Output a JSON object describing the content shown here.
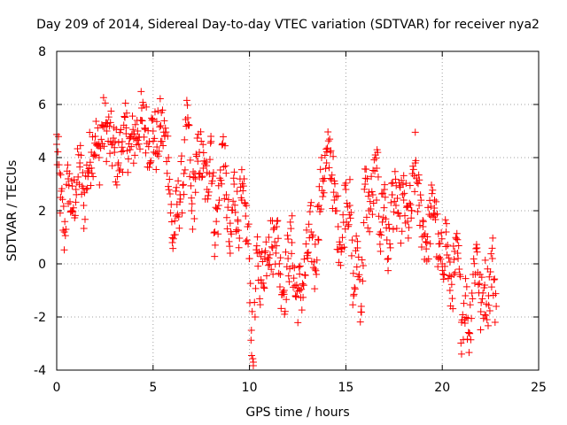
{
  "chart_data": {
    "type": "scatter",
    "title": "Day 209 of 2014, Sidereal Day-to-day VTEC variation (SDTVAR) for receiver nya2",
    "xlabel": "GPS time / hours",
    "ylabel": "SDTVAR / TECUs",
    "xlim": [
      0,
      25
    ],
    "ylim": [
      -4,
      8
    ],
    "x_ticks": [
      0,
      5,
      10,
      15,
      20,
      25
    ],
    "y_ticks": [
      -4,
      -2,
      0,
      2,
      4,
      6,
      8
    ],
    "x_tick_labels": [
      "0",
      "5",
      "10",
      "15",
      "20",
      "25"
    ],
    "y_tick_labels": [
      "-4",
      "-2",
      "0",
      "2",
      "4",
      "6",
      "8"
    ],
    "grid": true,
    "marker": "plus",
    "color": "#ff0000",
    "series": [
      {
        "name": "SDTVAR",
        "x": [
          0.0,
          0.2,
          0.4,
          0.6,
          0.8,
          1.0,
          1.2,
          1.4,
          1.6,
          1.8,
          2.0,
          2.2,
          2.4,
          2.6,
          2.8,
          3.0,
          3.2,
          3.4,
          3.6,
          3.8,
          4.0,
          4.2,
          4.4,
          4.6,
          4.8,
          5.0,
          5.2,
          5.4,
          5.6,
          5.8,
          6.0,
          6.2,
          6.4,
          6.6,
          6.8,
          7.0,
          7.2,
          7.4,
          7.6,
          7.8,
          8.0,
          8.2,
          8.4,
          8.6,
          8.8,
          9.0,
          9.2,
          9.4,
          9.6,
          9.8,
          10.0,
          10.1,
          10.2,
          10.4,
          10.6,
          10.8,
          11.0,
          11.2,
          11.4,
          11.6,
          11.8,
          12.0,
          12.2,
          12.4,
          12.6,
          12.8,
          13.0,
          13.2,
          13.4,
          13.6,
          13.8,
          14.0,
          14.2,
          14.4,
          14.6,
          14.8,
          15.0,
          15.2,
          15.4,
          15.6,
          15.8,
          16.0,
          16.2,
          16.4,
          16.6,
          16.8,
          17.0,
          17.2,
          17.4,
          17.6,
          17.8,
          18.0,
          18.2,
          18.4,
          18.6,
          18.8,
          19.0,
          19.2,
          19.4,
          19.6,
          19.8,
          20.0,
          20.2,
          20.4,
          20.6,
          20.8,
          21.0,
          21.2,
          21.4,
          21.6,
          21.8,
          22.0,
          22.2,
          22.4,
          22.6,
          22.8
        ],
        "values": [
          4.5,
          2.5,
          1.2,
          3.2,
          2.0,
          2.8,
          3.8,
          2.2,
          3.5,
          4.2,
          4.8,
          4.0,
          5.2,
          5.0,
          4.6,
          4.2,
          3.8,
          4.6,
          4.9,
          4.3,
          4.7,
          5.0,
          5.4,
          5.1,
          4.6,
          5.0,
          4.4,
          5.2,
          4.8,
          4.0,
          0.8,
          1.8,
          2.6,
          3.4,
          5.5,
          2.0,
          3.2,
          4.2,
          3.6,
          2.8,
          4.8,
          1.2,
          2.2,
          4.5,
          2.6,
          0.4,
          3.0,
          1.6,
          2.4,
          1.8,
          0.2,
          -2.5,
          -3.7,
          0.4,
          -0.6,
          0.2,
          1.0,
          0.6,
          1.4,
          -0.4,
          -1.0,
          0.2,
          0.8,
          -1.2,
          -1.0,
          -0.8,
          0.4,
          1.2,
          -0.2,
          2.2,
          3.2,
          3.8,
          4.2,
          2.4,
          1.4,
          0.6,
          2.8,
          2.2,
          -1.2,
          0.6,
          -1.6,
          3.0,
          2.0,
          2.6,
          3.6,
          1.2,
          2.8,
          0.2,
          2.6,
          2.2,
          1.8,
          2.4,
          1.6,
          2.0,
          3.8,
          2.2,
          1.4,
          0.8,
          1.8,
          2.4,
          0.2,
          0.0,
          1.2,
          -1.0,
          -0.4,
          0.4,
          -2.2,
          -1.2,
          -2.6,
          -0.4,
          0.6,
          -1.8,
          -0.8,
          -1.2,
          0.2,
          -1.6
        ]
      }
    ]
  }
}
